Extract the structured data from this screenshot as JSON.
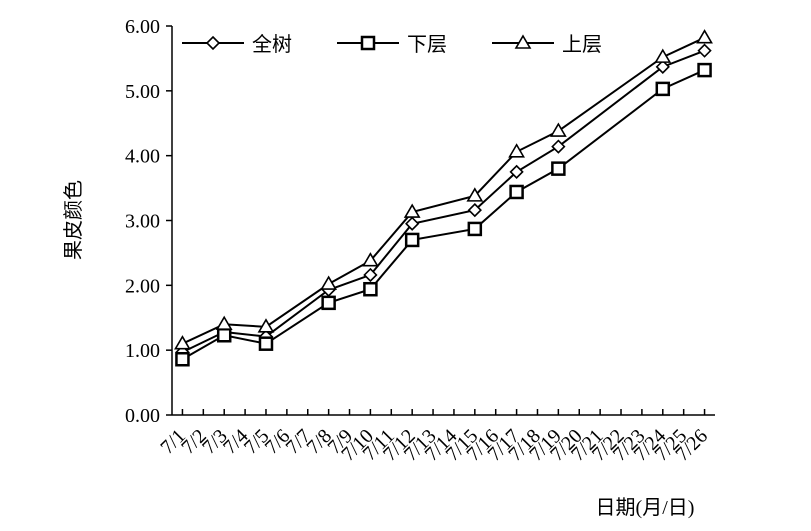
{
  "chart_data": {
    "type": "line",
    "y_label": "果皮颜色",
    "x_label": "日期(月/日)",
    "x": [
      1,
      3,
      5,
      8,
      10,
      12,
      15,
      17,
      19,
      24,
      26
    ],
    "xlim": [
      0.5,
      26.5
    ],
    "xticks": [
      {
        "value": 1,
        "label": "7/1"
      },
      {
        "value": 2,
        "label": "7/2"
      },
      {
        "value": 3,
        "label": "7/3"
      },
      {
        "value": 4,
        "label": "7/4"
      },
      {
        "value": 5,
        "label": "7/5"
      },
      {
        "value": 6,
        "label": "7/6"
      },
      {
        "value": 7,
        "label": "7/7"
      },
      {
        "value": 8,
        "label": "7/8"
      },
      {
        "value": 9,
        "label": "7/9"
      },
      {
        "value": 10,
        "label": "7/10"
      },
      {
        "value": 11,
        "label": "7/11"
      },
      {
        "value": 12,
        "label": "7/12"
      },
      {
        "value": 13,
        "label": "7/13"
      },
      {
        "value": 14,
        "label": "7/14"
      },
      {
        "value": 15,
        "label": "7/15"
      },
      {
        "value": 16,
        "label": "7/16"
      },
      {
        "value": 17,
        "label": "7/17"
      },
      {
        "value": 18,
        "label": "7/18"
      },
      {
        "value": 19,
        "label": "7/19"
      },
      {
        "value": 20,
        "label": "7/20"
      },
      {
        "value": 21,
        "label": "7/21"
      },
      {
        "value": 22,
        "label": "7/22"
      },
      {
        "value": 23,
        "label": "7/23"
      },
      {
        "value": 24,
        "label": "7/24"
      },
      {
        "value": 25,
        "label": "7/25"
      },
      {
        "value": 26,
        "label": "7/26"
      }
    ],
    "ylim": [
      0,
      6
    ],
    "yticks": [
      {
        "value": 0,
        "label": "0.00"
      },
      {
        "value": 1,
        "label": "1.00"
      },
      {
        "value": 2,
        "label": "2.00"
      },
      {
        "value": 3,
        "label": "3.00"
      },
      {
        "value": 4,
        "label": "4.00"
      },
      {
        "value": 5,
        "label": "5.00"
      },
      {
        "value": 6,
        "label": "6.00"
      }
    ],
    "legend": "top",
    "series": [
      {
        "name": "全树",
        "color": "#000000",
        "marker": "diamond",
        "values": [
          0.97,
          1.28,
          1.21,
          1.93,
          2.16,
          2.95,
          3.16,
          3.75,
          4.14,
          5.37,
          5.62
        ]
      },
      {
        "name": "下层",
        "color": "#000000",
        "marker": "square",
        "values": [
          0.86,
          1.23,
          1.1,
          1.73,
          1.94,
          2.7,
          2.87,
          3.44,
          3.8,
          5.03,
          5.32
        ]
      },
      {
        "name": "上层",
        "color": "#000000",
        "marker": "triangle",
        "values": [
          1.1,
          1.4,
          1.36,
          2.02,
          2.38,
          3.13,
          3.38,
          4.06,
          4.38,
          5.52,
          5.82
        ]
      }
    ]
  }
}
